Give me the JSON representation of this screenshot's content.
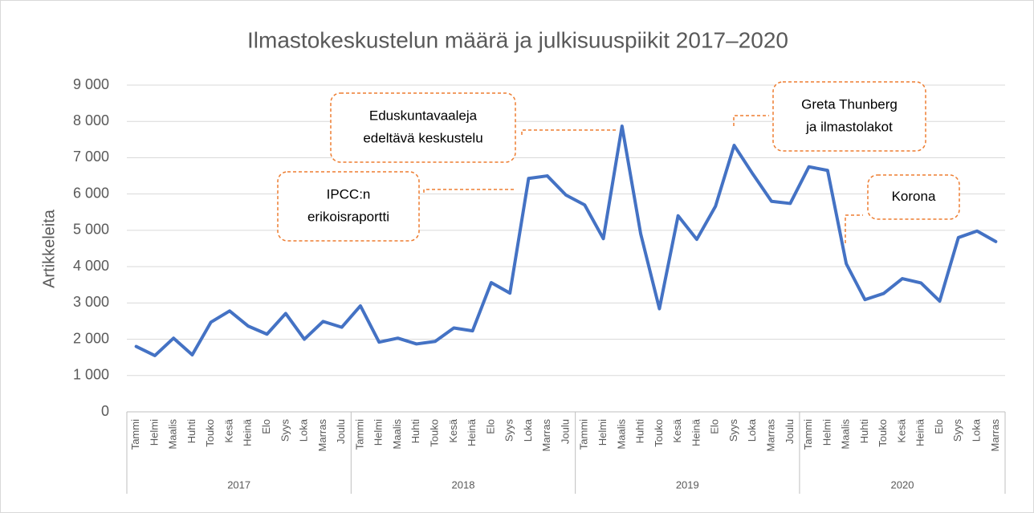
{
  "chart_data": {
    "type": "line",
    "title": "Ilmastokeskustelun määrä ja julkisuuspiikit 2017–2020",
    "y_label": "Artikkeleita",
    "color": "#4472c4",
    "grid": true,
    "ylim": [
      0,
      9000
    ],
    "yticks": [
      0,
      {
        "value": 1000,
        "label": "1 000"
      },
      {
        "value": 2000,
        "label": "2 000"
      },
      {
        "value": 3000,
        "label": "3 000"
      },
      {
        "value": 4000,
        "label": "4 000"
      },
      {
        "value": 5000,
        "label": "5 000"
      },
      {
        "value": 6000,
        "label": "6 000"
      },
      {
        "value": 7000,
        "label": "7 000"
      },
      {
        "value": 8000,
        "label": "8 000"
      },
      {
        "value": 9000,
        "label": "9 000"
      }
    ],
    "groups": [
      {
        "name": "2017",
        "categories": [
          "Tammi",
          "Helmi",
          "Maalis",
          "Huhti",
          "Touko",
          "Kesä",
          "Heinä",
          "Elo",
          "Syys",
          "Loka",
          "Marras",
          "Joulu"
        ]
      },
      {
        "name": "2018",
        "categories": [
          "Tammi",
          "Helmi",
          "Maalis",
          "Huhti",
          "Touko",
          "Kesä",
          "Heinä",
          "Elo",
          "Syys",
          "Loka",
          "Marras",
          "Joulu"
        ]
      },
      {
        "name": "2019",
        "categories": [
          "Tammi",
          "Helmi",
          "Maalis",
          "Huhti",
          "Touko",
          "Kesä",
          "Heinä",
          "Elo",
          "Syys",
          "Loka",
          "Marras",
          "Joulu"
        ]
      },
      {
        "name": "2020",
        "categories": [
          "Tammi",
          "Helmi",
          "Maalis",
          "Huhti",
          "Touko",
          "Kesä",
          "Heinä",
          "Elo",
          "Syys",
          "Loka",
          "Marras"
        ]
      }
    ],
    "values": [
      1800,
      1550,
      2030,
      1570,
      2470,
      2780,
      2360,
      2140,
      2710,
      2000,
      2490,
      2330,
      2920,
      1920,
      2030,
      1870,
      1940,
      2310,
      2230,
      3560,
      3270,
      6430,
      6500,
      5970,
      5700,
      4770,
      7870,
      4900,
      2840,
      5400,
      4750,
      5660,
      7340,
      6550,
      5800,
      5740,
      6750,
      6650,
      4080,
      3090,
      3260,
      3670,
      3550,
      3050,
      4800,
      4980,
      4690
    ],
    "annotations": [
      {
        "lines": [
          "Eduskuntavaaleja",
          "edeltävä keskustelu"
        ]
      },
      {
        "lines": [
          "IPCC:n",
          "erikoisraportti"
        ]
      },
      {
        "lines": [
          "Greta Thunberg",
          "ja ilmastolakot"
        ]
      },
      {
        "lines": [
          "Korona"
        ]
      }
    ]
  }
}
